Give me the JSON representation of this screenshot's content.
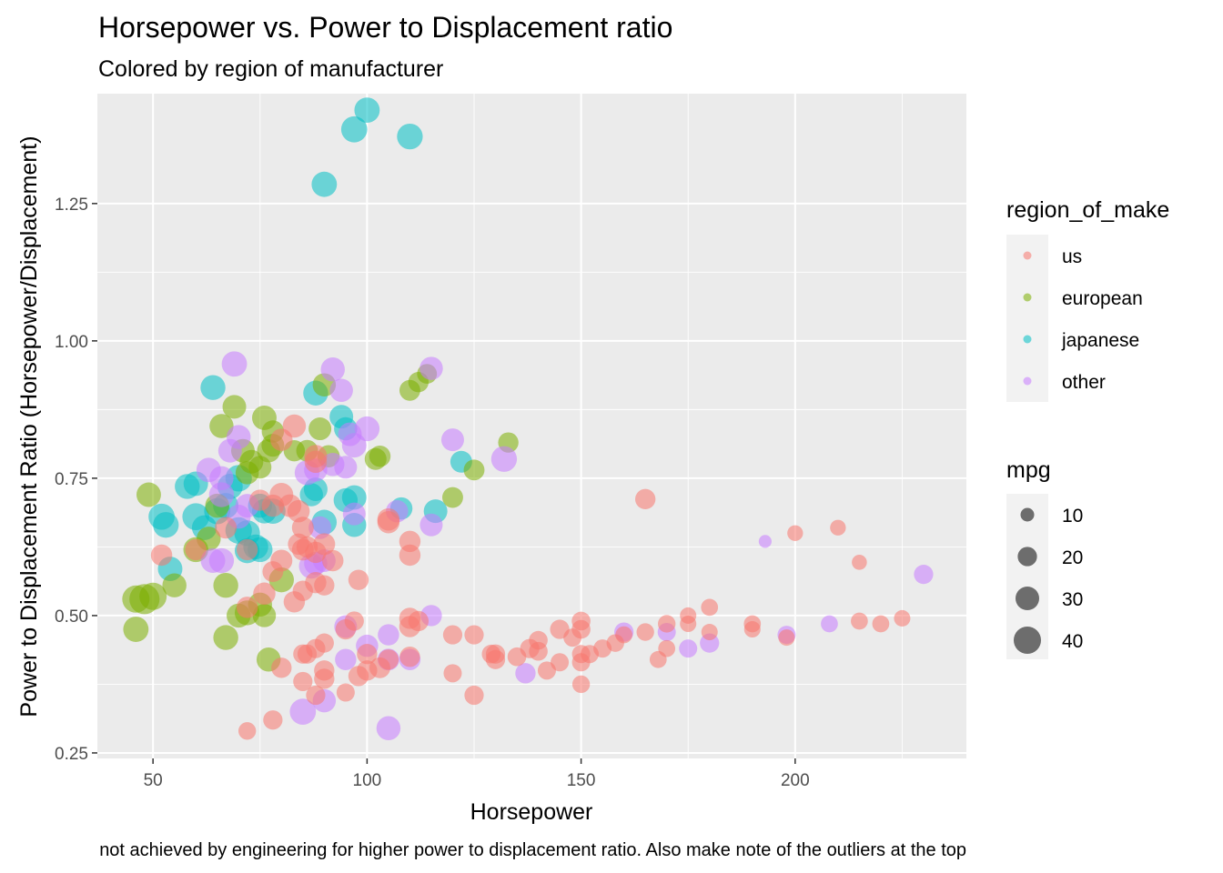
{
  "chart_data": {
    "type": "scatter",
    "title": "Horsepower vs. Power to Displacement ratio",
    "subtitle": "Colored by region of manufacturer",
    "xlabel": "Horsepower",
    "ylabel": "Power to Displacement Ratio (Horsepower/Displacement)",
    "caption": "not achieved by engineering for higher power to displacement ratio. Also make note of the outliers at the top",
    "xlim": [
      37,
      240
    ],
    "ylim": [
      0.24,
      1.45
    ],
    "x_ticks": [
      50,
      100,
      150,
      200
    ],
    "x_tick_labels": [
      "50",
      "100",
      "150",
      "200"
    ],
    "y_ticks": [
      0.25,
      0.5,
      0.75,
      1.0,
      1.25
    ],
    "y_tick_labels": [
      "0.25",
      "0.50",
      "0.75",
      "1.00",
      "1.25"
    ],
    "grid": true,
    "legend_position": "right",
    "colors": {
      "us": "#F8766D",
      "european": "#7CAE00",
      "japanese": "#00BFC4",
      "other": "#C77CFF",
      "panel": "#EBEBEB",
      "grid": "#FFFFFF"
    },
    "color_legend": {
      "title": "region_of_make",
      "entries": [
        "us",
        "european",
        "japanese",
        "other"
      ]
    },
    "size_legend": {
      "title": "mpg",
      "entries": [
        "10",
        "20",
        "30",
        "40"
      ],
      "values": [
        10,
        20,
        30,
        40
      ]
    },
    "series": [
      {
        "name": "japanese",
        "points": [
          [
            100,
            1.42,
            31
          ],
          [
            97,
            1.385,
            33
          ],
          [
            110,
            1.372,
            32
          ],
          [
            90,
            1.285,
            31
          ],
          [
            64,
            0.915,
            30
          ],
          [
            88,
            0.905,
            30
          ],
          [
            94,
            0.862,
            27
          ],
          [
            95,
            0.84,
            26
          ],
          [
            68,
            0.735,
            31
          ],
          [
            70,
            0.75,
            34
          ],
          [
            58,
            0.735,
            30
          ],
          [
            60,
            0.74,
            29
          ],
          [
            52,
            0.68,
            33
          ],
          [
            53,
            0.665,
            32
          ],
          [
            60,
            0.68,
            35
          ],
          [
            62,
            0.66,
            30
          ],
          [
            65,
            0.69,
            33
          ],
          [
            67,
            0.7,
            31
          ],
          [
            70,
            0.655,
            34
          ],
          [
            72,
            0.65,
            32
          ],
          [
            75,
            0.7,
            28
          ],
          [
            76,
            0.69,
            29
          ],
          [
            78,
            0.69,
            31
          ],
          [
            75,
            0.62,
            30
          ],
          [
            72,
            0.618,
            30
          ],
          [
            54,
            0.585,
            29
          ],
          [
            88,
            0.73,
            27
          ],
          [
            87,
            0.72,
            26
          ],
          [
            90,
            0.67,
            30
          ],
          [
            95,
            0.71,
            28
          ],
          [
            97,
            0.715,
            29
          ],
          [
            97,
            0.665,
            28
          ],
          [
            108,
            0.695,
            24
          ],
          [
            116,
            0.69,
            27
          ],
          [
            122,
            0.78,
            23
          ],
          [
            74,
            0.625,
            30
          ]
        ]
      },
      {
        "name": "european",
        "points": [
          [
            46,
            0.53,
            36
          ],
          [
            48,
            0.53,
            44
          ],
          [
            46,
            0.475,
            31
          ],
          [
            50,
            0.535,
            36
          ],
          [
            49,
            0.72,
            29
          ],
          [
            55,
            0.555,
            28
          ],
          [
            60,
            0.62,
            30
          ],
          [
            63,
            0.64,
            28
          ],
          [
            67,
            0.555,
            30
          ],
          [
            67,
            0.46,
            30
          ],
          [
            70,
            0.5,
            28
          ],
          [
            72,
            0.505,
            30
          ],
          [
            77,
            0.42,
            28
          ],
          [
            80,
            0.565,
            30
          ],
          [
            75,
            0.52,
            28
          ],
          [
            76,
            0.5,
            26
          ],
          [
            66,
            0.845,
            28
          ],
          [
            69,
            0.88,
            27
          ],
          [
            71,
            0.8,
            27
          ],
          [
            76,
            0.86,
            29
          ],
          [
            72,
            0.76,
            26
          ],
          [
            75,
            0.77,
            25
          ],
          [
            77,
            0.8,
            26
          ],
          [
            78,
            0.81,
            25
          ],
          [
            78,
            0.835,
            24
          ],
          [
            83,
            0.8,
            22
          ],
          [
            86,
            0.8,
            23
          ],
          [
            89,
            0.84,
            25
          ],
          [
            91,
            0.79,
            24
          ],
          [
            90,
            0.92,
            26
          ],
          [
            102,
            0.785,
            23
          ],
          [
            103,
            0.79,
            22
          ],
          [
            110,
            0.91,
            21
          ],
          [
            112,
            0.925,
            20
          ],
          [
            114,
            0.94,
            19
          ],
          [
            120,
            0.715,
            21
          ],
          [
            125,
            0.765,
            21
          ],
          [
            133,
            0.815,
            20
          ],
          [
            65,
            0.7,
            28
          ],
          [
            73,
            0.78,
            27
          ]
        ]
      },
      {
        "name": "other",
        "points": [
          [
            69,
            0.958,
            31
          ],
          [
            92,
            0.948,
            28
          ],
          [
            115,
            0.95,
            26
          ],
          [
            94,
            0.91,
            26
          ],
          [
            100,
            0.84,
            30
          ],
          [
            97,
            0.81,
            29
          ],
          [
            96,
            0.83,
            27
          ],
          [
            95,
            0.77,
            25
          ],
          [
            120,
            0.82,
            25
          ],
          [
            132,
            0.785,
            32
          ],
          [
            70,
            0.825,
            28
          ],
          [
            68,
            0.8,
            27
          ],
          [
            63,
            0.765,
            29
          ],
          [
            66,
            0.75,
            28
          ],
          [
            66,
            0.72,
            30
          ],
          [
            72,
            0.7,
            27
          ],
          [
            70,
            0.68,
            28
          ],
          [
            86,
            0.76,
            30
          ],
          [
            92,
            0.775,
            26
          ],
          [
            88,
            0.765,
            26
          ],
          [
            66,
            0.6,
            30
          ],
          [
            64,
            0.6,
            29
          ],
          [
            89,
            0.66,
            25
          ],
          [
            87,
            0.59,
            30
          ],
          [
            88,
            0.595,
            26
          ],
          [
            107,
            0.69,
            24
          ],
          [
            115,
            0.665,
            25
          ],
          [
            97,
            0.685,
            25
          ],
          [
            115,
            0.5,
            22
          ],
          [
            95,
            0.48,
            25
          ],
          [
            100,
            0.445,
            24
          ],
          [
            105,
            0.465,
            22
          ],
          [
            95,
            0.42,
            22
          ],
          [
            105,
            0.42,
            23
          ],
          [
            110,
            0.42,
            22
          ],
          [
            85,
            0.325,
            33
          ],
          [
            90,
            0.345,
            26
          ],
          [
            105,
            0.295,
            28
          ],
          [
            137,
            0.395,
            20
          ],
          [
            160,
            0.47,
            18
          ],
          [
            170,
            0.47,
            16
          ],
          [
            175,
            0.44,
            16
          ],
          [
            180,
            0.45,
            18
          ],
          [
            198,
            0.465,
            16
          ],
          [
            208,
            0.485,
            14
          ],
          [
            230,
            0.575,
            18
          ],
          [
            193,
            0.635,
            8
          ],
          [
            90,
            0.6,
            25
          ]
        ]
      },
      {
        "name": "us",
        "points": [
          [
            165,
            0.712,
            20
          ],
          [
            200,
            0.65,
            12
          ],
          [
            210,
            0.66,
            12
          ],
          [
            215,
            0.597,
            11
          ],
          [
            83,
            0.845,
            26
          ],
          [
            88,
            0.79,
            25
          ],
          [
            88,
            0.78,
            24
          ],
          [
            80,
            0.82,
            24
          ],
          [
            80,
            0.72,
            27
          ],
          [
            82,
            0.7,
            25
          ],
          [
            84,
            0.69,
            24
          ],
          [
            85,
            0.66,
            23
          ],
          [
            78,
            0.7,
            24
          ],
          [
            75,
            0.71,
            22
          ],
          [
            72,
            0.62,
            22
          ],
          [
            67,
            0.66,
            23
          ],
          [
            60,
            0.62,
            22
          ],
          [
            52,
            0.61,
            22
          ],
          [
            84,
            0.63,
            22
          ],
          [
            85,
            0.62,
            23
          ],
          [
            86,
            0.625,
            22
          ],
          [
            88,
            0.615,
            22
          ],
          [
            90,
            0.63,
            23
          ],
          [
            92,
            0.6,
            22
          ],
          [
            80,
            0.6,
            23
          ],
          [
            78,
            0.58,
            21
          ],
          [
            76,
            0.54,
            24
          ],
          [
            72,
            0.515,
            22
          ],
          [
            83,
            0.525,
            22
          ],
          [
            85,
            0.545,
            20
          ],
          [
            88,
            0.56,
            22
          ],
          [
            90,
            0.555,
            20
          ],
          [
            98,
            0.565,
            20
          ],
          [
            105,
            0.67,
            24
          ],
          [
            105,
            0.675,
            24
          ],
          [
            110,
            0.635,
            22
          ],
          [
            110,
            0.61,
            22
          ],
          [
            110,
            0.495,
            22
          ],
          [
            110,
            0.48,
            22
          ],
          [
            112,
            0.49,
            20
          ],
          [
            97,
            0.49,
            18
          ],
          [
            95,
            0.475,
            20
          ],
          [
            100,
            0.43,
            20
          ],
          [
            100,
            0.4,
            20
          ],
          [
            98,
            0.39,
            20
          ],
          [
            103,
            0.405,
            21
          ],
          [
            105,
            0.42,
            20
          ],
          [
            110,
            0.425,
            20
          ],
          [
            90,
            0.45,
            18
          ],
          [
            88,
            0.44,
            18
          ],
          [
            86,
            0.43,
            18
          ],
          [
            90,
            0.4,
            20
          ],
          [
            90,
            0.385,
            20
          ],
          [
            88,
            0.355,
            18
          ],
          [
            85,
            0.38,
            18
          ],
          [
            95,
            0.36,
            16
          ],
          [
            80,
            0.405,
            20
          ],
          [
            85,
            0.43,
            18
          ],
          [
            78,
            0.31,
            18
          ],
          [
            72,
            0.29,
            15
          ],
          [
            120,
            0.465,
            18
          ],
          [
            120,
            0.395,
            16
          ],
          [
            125,
            0.465,
            18
          ],
          [
            125,
            0.355,
            18
          ],
          [
            130,
            0.43,
            18
          ],
          [
            130,
            0.42,
            18
          ],
          [
            135,
            0.425,
            17
          ],
          [
            138,
            0.44,
            18
          ],
          [
            140,
            0.455,
            17
          ],
          [
            140,
            0.435,
            17
          ],
          [
            142,
            0.4,
            16
          ],
          [
            145,
            0.475,
            18
          ],
          [
            145,
            0.415,
            16
          ],
          [
            148,
            0.46,
            16
          ],
          [
            150,
            0.49,
            17
          ],
          [
            150,
            0.475,
            17
          ],
          [
            150,
            0.43,
            16
          ],
          [
            150,
            0.415,
            16
          ],
          [
            150,
            0.375,
            15
          ],
          [
            152,
            0.43,
            16
          ],
          [
            155,
            0.44,
            16
          ],
          [
            158,
            0.45,
            15
          ],
          [
            165,
            0.47,
            15
          ],
          [
            168,
            0.42,
            14
          ],
          [
            170,
            0.485,
            15
          ],
          [
            170,
            0.44,
            14
          ],
          [
            175,
            0.5,
            13
          ],
          [
            175,
            0.485,
            13
          ],
          [
            180,
            0.515,
            14
          ],
          [
            180,
            0.47,
            13
          ],
          [
            190,
            0.485,
            14
          ],
          [
            190,
            0.475,
            13
          ],
          [
            198,
            0.46,
            13
          ],
          [
            215,
            0.49,
            14
          ],
          [
            220,
            0.485,
            14
          ],
          [
            225,
            0.495,
            13
          ],
          [
            129,
            0.43,
            17
          ],
          [
            160,
            0.465,
            14
          ]
        ]
      }
    ]
  }
}
